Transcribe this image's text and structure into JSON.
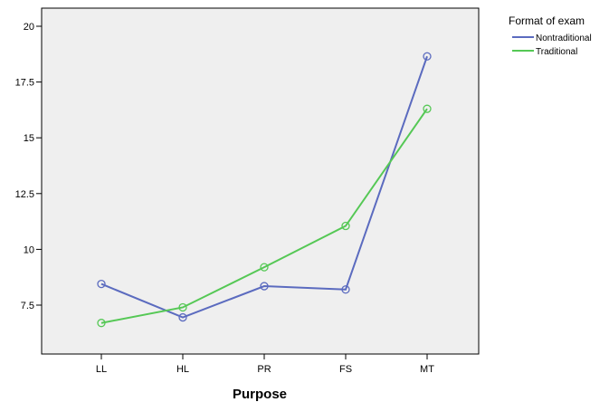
{
  "chart_data": {
    "type": "line",
    "xlabel": "Purpose",
    "ylabel": "",
    "categories": [
      "LL",
      "HL",
      "PR",
      "FS",
      "MT"
    ],
    "ylim": [
      5.5,
      20.5
    ],
    "yticks": [
      7.5,
      10,
      12.5,
      15,
      17.5,
      20
    ],
    "ytick_labels": [
      "7.5",
      "10",
      "12.5",
      "15",
      "17.5",
      "20"
    ],
    "grid": false,
    "legend": {
      "title": "Format of exam",
      "placement": "top-right, outside plot"
    },
    "series": [
      {
        "name": "Nontraditional",
        "color": "#5b6bbf",
        "values": [
          8.45,
          6.95,
          8.35,
          8.2,
          18.65
        ]
      },
      {
        "name": "Traditional",
        "color": "#55c855",
        "values": [
          6.7,
          7.4,
          9.2,
          11.05,
          16.3
        ]
      }
    ],
    "plot_background": "#efefef",
    "marker": "open-circle"
  }
}
